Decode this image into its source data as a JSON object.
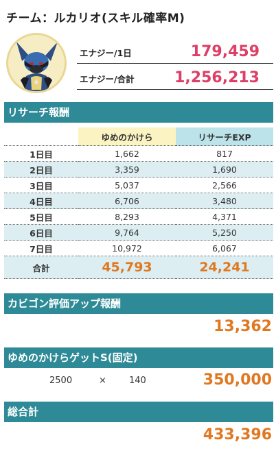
{
  "title": "チーム：ルカリオ(スキル確率M)",
  "stats": {
    "energy_day_label": "エナジー/1日",
    "energy_day_value": "179,459",
    "energy_total_label": "エナジー/合計",
    "energy_total_value": "1,256,213"
  },
  "research": {
    "header": "リサーチ報酬",
    "col_dream": "ゆめのかけら",
    "col_exp": "リサーチEXP",
    "rows": [
      {
        "day": "1日目",
        "dream": "1,662",
        "exp": "817"
      },
      {
        "day": "2日目",
        "dream": "3,359",
        "exp": "1,690"
      },
      {
        "day": "3日目",
        "dream": "5,037",
        "exp": "2,566"
      },
      {
        "day": "4日目",
        "dream": "6,706",
        "exp": "3,480"
      },
      {
        "day": "5日目",
        "dream": "8,293",
        "exp": "4,371"
      },
      {
        "day": "6日目",
        "dream": "9,764",
        "exp": "5,250"
      },
      {
        "day": "7日目",
        "dream": "10,972",
        "exp": "6,067"
      }
    ],
    "total_label": "合計",
    "total_dream": "45,793",
    "total_exp": "24,241"
  },
  "snorlax": {
    "header": "カビゴン評価アップ報酬",
    "value": "13,362"
  },
  "dream_get": {
    "header": "ゆめのかけらゲットS(固定)",
    "amount": "2500",
    "times": "×",
    "count": "140",
    "value": "350,000"
  },
  "grand_total": {
    "header": "総合計",
    "value": "433,396"
  },
  "colors": {
    "section_bar": "#2d8a96",
    "energy_value": "#dd3f66",
    "accent_orange": "#e07820",
    "row_alt": "#dceef2"
  }
}
